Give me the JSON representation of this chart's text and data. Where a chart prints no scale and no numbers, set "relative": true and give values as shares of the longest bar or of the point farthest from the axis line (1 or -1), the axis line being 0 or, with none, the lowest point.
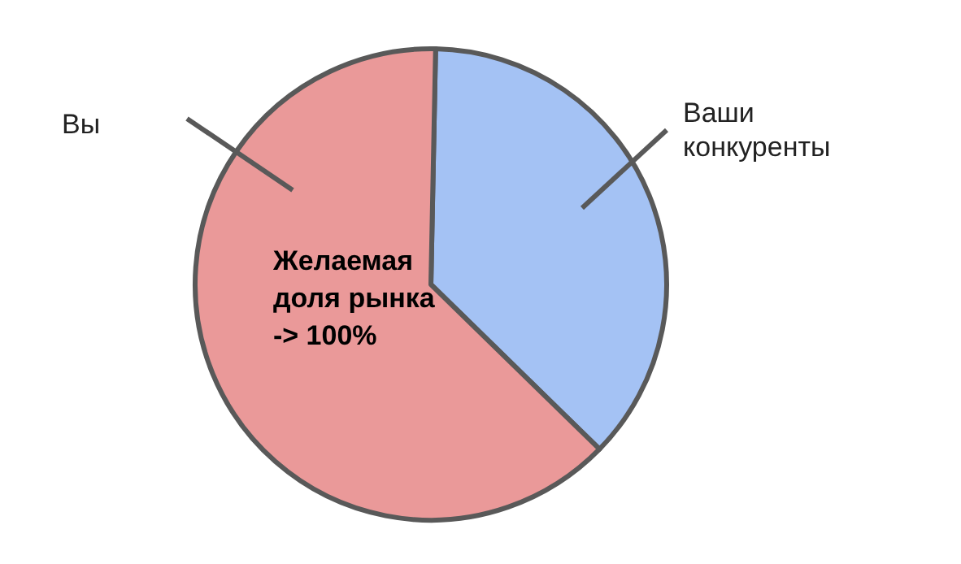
{
  "chart_data": {
    "type": "pie",
    "relative": true,
    "categories": [
      "Ваши конкуренты",
      "Вы"
    ],
    "values": [
      37,
      63
    ],
    "colors": [
      "#a4c2f4",
      "#ea9999"
    ],
    "annotations": [
      "Желаемая доля рынка -> 100%"
    ]
  }
}
